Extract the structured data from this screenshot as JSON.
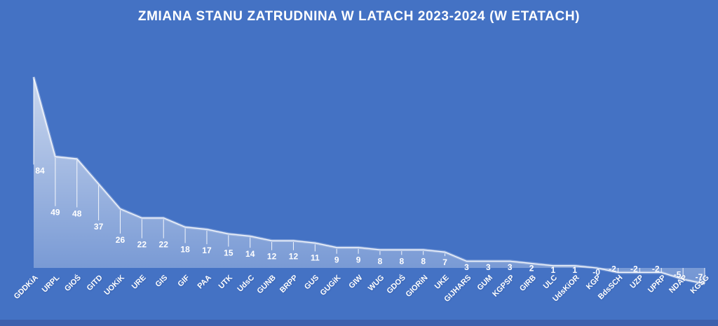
{
  "colors": {
    "background": "#4472C4",
    "bottom_strip": "#3D60AD",
    "text": "#FFFFFF",
    "leader_line": "rgba(255,255,255,0.9)",
    "curve_stroke": "rgba(255,255,255,0.95)",
    "curve_glow": "rgba(255,255,255,0.30)",
    "area_gradient_top": "rgba(255,255,255,0.72)",
    "area_gradient_bottom": "rgba(255,255,255,0.26)"
  },
  "chart_data": {
    "type": "area",
    "title": "ZMIANA STANU ZATRUDNINA W LATACH 2023-2024 (W ETATACH)",
    "categories": [
      "GDDKiA",
      "URPL",
      "GIOŚ",
      "GITD",
      "UOKiK",
      "URE",
      "GIS",
      "GIF",
      "PAA",
      "UTK",
      "UdsC",
      "GUNB",
      "BRPP",
      "GUS",
      "GUGiK",
      "GIW",
      "WUG",
      "GDOŚ",
      "GIORiN",
      "UKE",
      "GIJHARS",
      "GUM",
      "KGPSP",
      "GIRB",
      "ULC",
      "UdsKiOR",
      "KGP",
      "BdsSCH",
      "UZP",
      "UPRP",
      "NDAP",
      "KGSG"
    ],
    "values": [
      84,
      49,
      48,
      37,
      26,
      22,
      22,
      18,
      17,
      15,
      14,
      12,
      12,
      11,
      9,
      9,
      8,
      8,
      8,
      7,
      3,
      3,
      3,
      2,
      1,
      1,
      0,
      -2,
      -2,
      -2,
      -5,
      -7
    ],
    "value_labels": [
      "84",
      "49",
      "48",
      "37",
      "26",
      "22",
      "22",
      "18",
      "17",
      "15",
      "14",
      "12",
      "12",
      "11",
      "9",
      "9",
      "8",
      "8",
      "8",
      "7",
      "3",
      "3",
      "3",
      "2",
      "1",
      "1",
      "-0",
      "-2",
      "-2",
      "-2",
      "-5",
      "-7"
    ],
    "xlabel": "",
    "ylabel": "",
    "ylim": [
      -10,
      90
    ],
    "grid": false,
    "legend": false,
    "data_labels": "below points with white leader lines",
    "axis_label_rotation_deg": -45
  }
}
